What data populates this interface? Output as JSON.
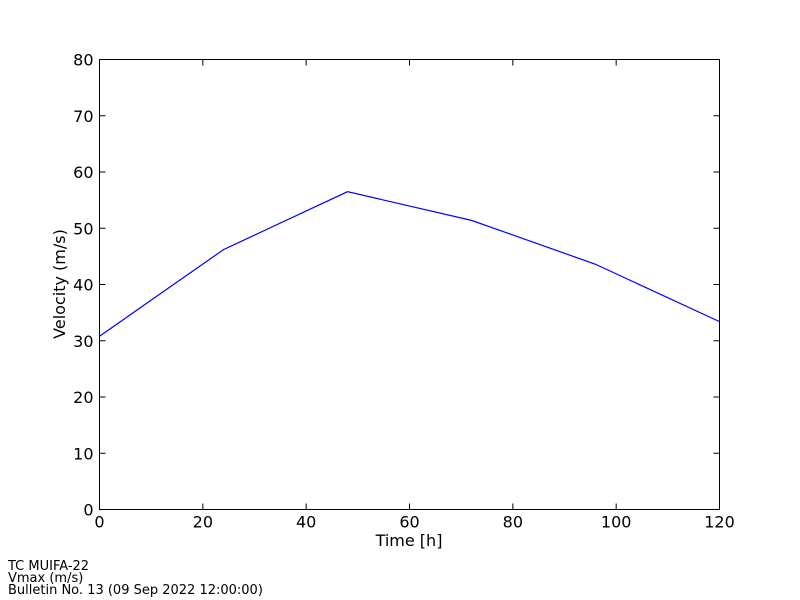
{
  "chart_data": {
    "type": "line",
    "x": [
      0,
      24,
      48,
      72,
      96,
      120
    ],
    "series": [
      {
        "name": "Vmax",
        "color": "#0000ff",
        "values": [
          30.8,
          46.2,
          56.5,
          51.4,
          43.6,
          33.4
        ]
      }
    ],
    "xlabel": "Time [h]",
    "ylabel": "Velocity (m/s)",
    "xlim": [
      0,
      120
    ],
    "xticks": [
      0,
      20,
      40,
      60,
      80,
      100,
      120
    ],
    "ylim": [
      0,
      80
    ],
    "yticks": [
      0,
      10,
      20,
      30,
      40,
      50,
      60,
      70,
      80
    ],
    "grid": false
  },
  "footer": [
    "TC MUIFA-22",
    "Vmax (m/s)",
    "Bulletin No. 13 (09 Sep 2022  12:00:00)"
  ]
}
